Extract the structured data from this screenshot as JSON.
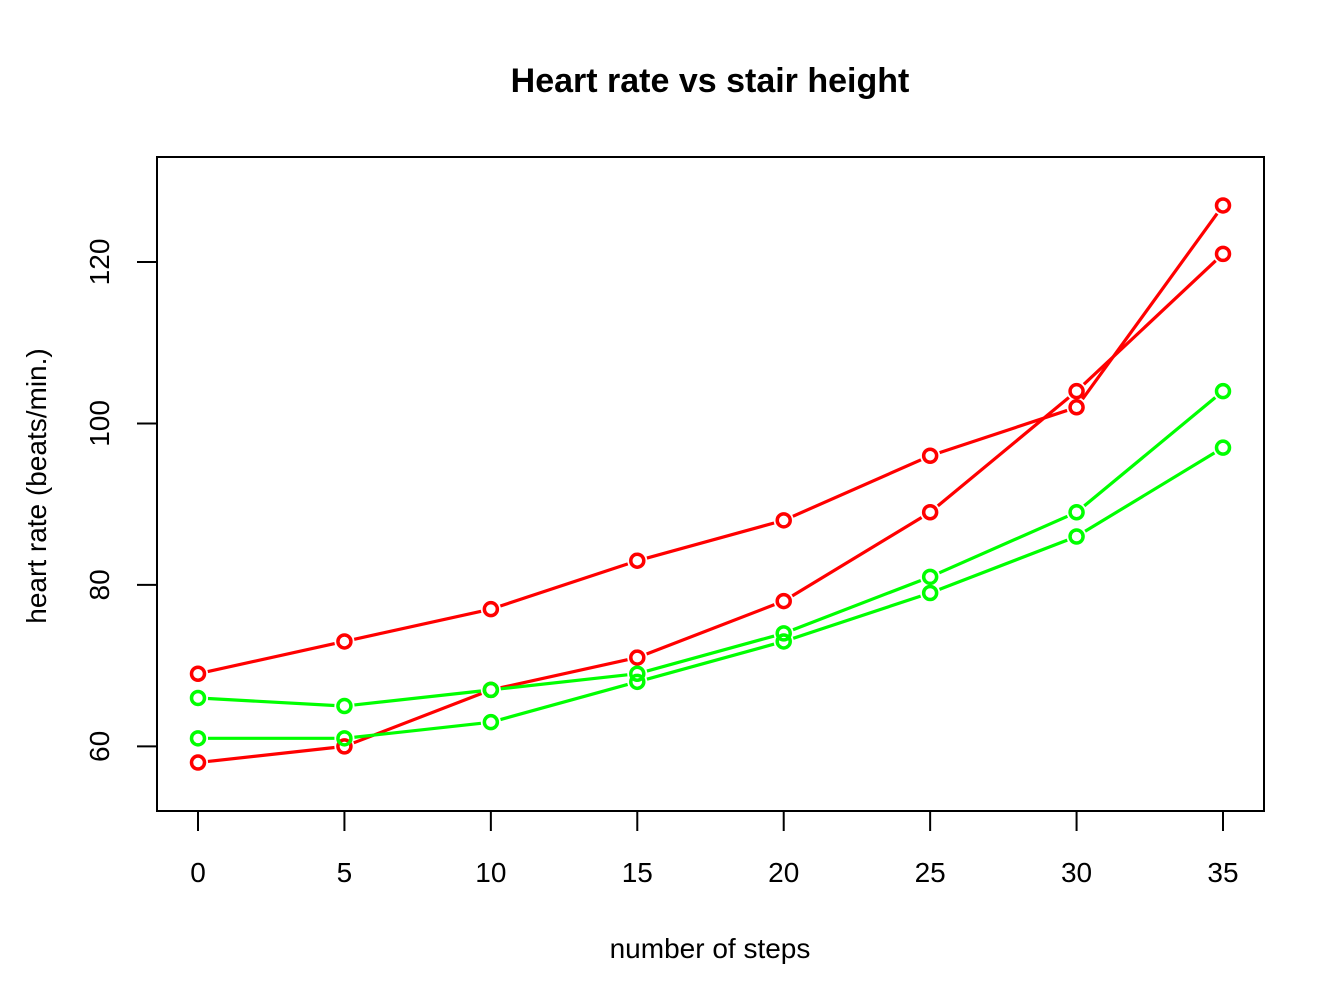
{
  "chart_data": {
    "type": "line",
    "title": "Heart rate vs stair height",
    "xlabel": "number of steps",
    "ylabel": "heart rate (beats/min.)",
    "xlim": [
      -1.4,
      36.4
    ],
    "ylim": [
      52,
      133
    ],
    "xticks": [
      0,
      5,
      10,
      15,
      20,
      25,
      30,
      35
    ],
    "yticks": [
      60,
      80,
      100,
      120
    ],
    "x": [
      0,
      5,
      10,
      15,
      20,
      25,
      30,
      35
    ],
    "series": [
      {
        "values": [
          69,
          73,
          77,
          83,
          88,
          96,
          102,
          127
        ],
        "color": "#ff0000",
        "marker": "open-circle"
      },
      {
        "values": [
          58,
          60,
          67,
          71,
          78,
          89,
          104,
          121
        ],
        "color": "#ff0000",
        "marker": "open-circle"
      },
      {
        "values": [
          66,
          65,
          67,
          69,
          74,
          81,
          89,
          104
        ],
        "color": "#00ff00",
        "marker": "open-circle"
      },
      {
        "values": [
          61,
          61,
          63,
          68,
          73,
          79,
          86,
          97
        ],
        "color": "#00ff00",
        "marker": "open-circle"
      }
    ],
    "grid": false,
    "legend": "none"
  }
}
